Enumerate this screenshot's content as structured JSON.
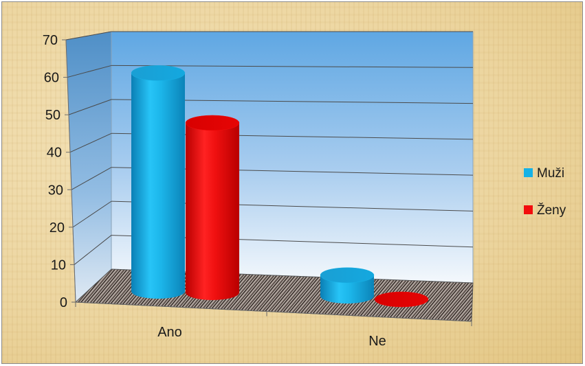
{
  "chart_data": {
    "type": "bar",
    "style": "3d-cylinder",
    "categories": [
      "Ano",
      "Ne"
    ],
    "series": [
      {
        "name": "Muži",
        "values": [
          63,
          6
        ],
        "color": "#16b2e6"
      },
      {
        "name": "Ženy",
        "values": [
          49,
          0
        ],
        "color": "#f20d0d"
      }
    ],
    "yticks": [
      "0",
      "10",
      "20",
      "30",
      "40",
      "50",
      "60",
      "70"
    ],
    "ylim": [
      0,
      70
    ],
    "grid": true,
    "legend_position": "right",
    "background_color": "#ecd59f",
    "wall_color": "#7fb9e8",
    "floor_style": "wood-stripes"
  }
}
